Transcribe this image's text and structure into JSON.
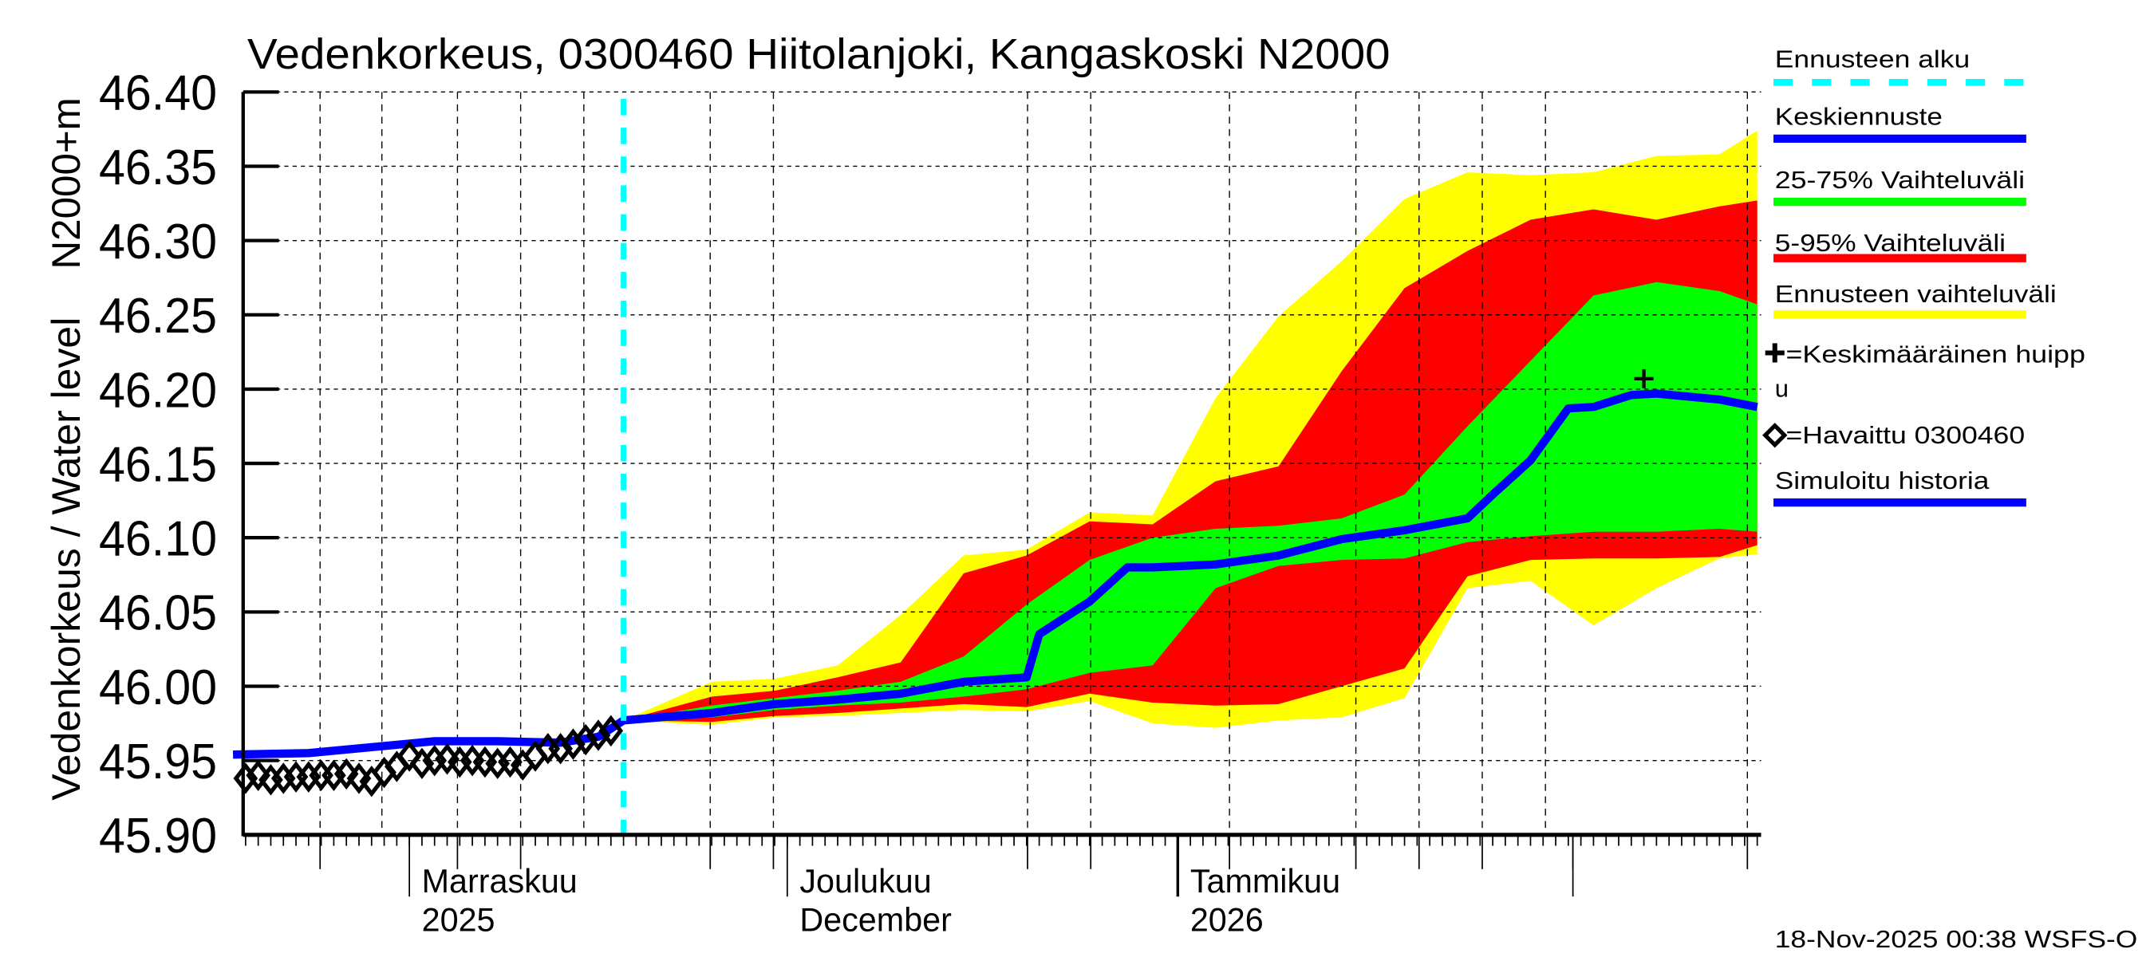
{
  "chart_data": {
    "type": "area",
    "title": "Vedenkorkeus, 0300460 Hiitolanjoki, Kangaskoski N2000",
    "ylabel": "Vedenkorkeus / Water level",
    "yunit": "N2000+m",
    "ylim": [
      45.9,
      46.4
    ],
    "yticks": [
      "45.90",
      "45.95",
      "46.00",
      "46.05",
      "46.10",
      "46.15",
      "46.20",
      "46.25",
      "46.30",
      "46.35",
      "46.40"
    ],
    "xlim": [
      "2025-10-18",
      "2026-02-16"
    ],
    "grid": true,
    "legend_position": "right",
    "x_month_labels": [
      {
        "date": "2025-11-01",
        "line1": "Marraskuu",
        "line2": "2025"
      },
      {
        "date": "2025-12-01",
        "line1": "Joulukuu",
        "line2": "December"
      },
      {
        "date": "2026-01-01",
        "line1": "Tammikuu",
        "line2": "2026"
      }
    ],
    "forecast_start": "2025-11-18",
    "forecast_dates": [
      "2025-11-18",
      "2025-11-25",
      "2025-11-30",
      "2025-12-05",
      "2025-12-10",
      "2025-12-15",
      "2025-12-20",
      "2025-12-25",
      "2025-12-30",
      "2026-01-04",
      "2026-01-09",
      "2026-01-14",
      "2026-01-19",
      "2026-01-24",
      "2026-01-29",
      "2026-02-03",
      "2026-02-08",
      "2026-02-13",
      "2026-02-16"
    ],
    "bands": {
      "range_upper": [
        45.977,
        46.003,
        46.005,
        46.014,
        46.048,
        46.088,
        46.092,
        46.117,
        46.115,
        46.194,
        46.249,
        46.286,
        46.328,
        46.346,
        46.344,
        46.346,
        46.357,
        46.358,
        46.374
      ],
      "p95": [
        45.977,
        45.993,
        45.997,
        46.006,
        46.016,
        46.076,
        46.088,
        46.111,
        46.109,
        46.138,
        46.148,
        46.212,
        46.268,
        46.293,
        46.314,
        46.321,
        46.314,
        46.323,
        46.327
      ],
      "p75": [
        45.977,
        45.987,
        45.992,
        45.997,
        46.003,
        46.02,
        46.055,
        46.085,
        46.1,
        46.106,
        46.108,
        46.113,
        46.129,
        46.175,
        46.219,
        46.263,
        46.272,
        46.266,
        46.257
      ],
      "p25": [
        45.977,
        45.979,
        45.984,
        45.987,
        45.989,
        45.993,
        45.998,
        46.009,
        46.014,
        46.066,
        46.081,
        46.085,
        46.086,
        46.097,
        46.101,
        46.104,
        46.104,
        46.106,
        46.104
      ],
      "p5": [
        45.977,
        45.976,
        45.98,
        45.982,
        45.985,
        45.988,
        45.986,
        45.995,
        45.989,
        45.987,
        45.988,
        46.0,
        46.012,
        46.074,
        46.085,
        46.086,
        46.086,
        46.087,
        46.095
      ],
      "range_lower": [
        45.977,
        45.974,
        45.979,
        45.98,
        45.982,
        45.984,
        45.983,
        45.99,
        45.975,
        45.972,
        45.977,
        45.979,
        45.992,
        46.066,
        46.071,
        46.041,
        46.066,
        46.086,
        46.089
      ]
    },
    "median_forecast": [
      [
        "2025-11-18",
        45.977
      ],
      [
        "2025-11-25",
        45.982
      ],
      [
        "2025-11-30",
        45.988
      ],
      [
        "2025-12-05",
        45.991
      ],
      [
        "2025-12-10",
        45.995
      ],
      [
        "2025-12-15",
        46.003
      ],
      [
        "2025-12-20",
        46.006
      ],
      [
        "2025-12-21",
        46.035
      ],
      [
        "2025-12-25",
        46.057
      ],
      [
        "2025-12-28",
        46.08
      ],
      [
        "2025-12-30",
        46.08
      ],
      [
        "2026-01-04",
        46.082
      ],
      [
        "2026-01-09",
        46.088
      ],
      [
        "2026-01-14",
        46.099
      ],
      [
        "2026-01-19",
        46.105
      ],
      [
        "2026-01-24",
        46.113
      ],
      [
        "2026-01-26",
        46.129
      ],
      [
        "2026-01-29",
        46.152
      ],
      [
        "2026-02-01",
        46.187
      ],
      [
        "2026-02-03",
        46.188
      ],
      [
        "2026-02-06",
        46.196
      ],
      [
        "2026-02-08",
        46.197
      ],
      [
        "2026-02-13",
        46.193
      ],
      [
        "2026-02-16",
        46.188
      ]
    ],
    "mean_peak": {
      "date": "2026-02-07",
      "value": 46.207
    },
    "simulated_history": [
      [
        "2025-10-18",
        45.954
      ],
      [
        "2025-10-24",
        45.955
      ],
      [
        "2025-10-29",
        45.959
      ],
      [
        "2025-11-03",
        45.963
      ],
      [
        "2025-11-08",
        45.963
      ],
      [
        "2025-11-13",
        45.962
      ],
      [
        "2025-11-16",
        45.966
      ],
      [
        "2025-11-18",
        45.977
      ]
    ],
    "observed_start": "2025-10-19",
    "observed": [
      45.938,
      45.94,
      45.937,
      45.938,
      45.939,
      45.939,
      45.94,
      45.94,
      45.941,
      45.938,
      45.936,
      45.942,
      45.946,
      45.953,
      45.948,
      45.95,
      45.951,
      45.949,
      45.95,
      45.949,
      45.948,
      45.949,
      45.947,
      45.953,
      45.958,
      45.958,
      45.961,
      45.964,
      45.967,
      45.97
    ],
    "colors": {
      "forecast_start": "#00ffff",
      "median": "#0000ff",
      "p25_75": "#00ff00",
      "p5_95": "#ff0000",
      "range": "#ffff00",
      "history": "#0000ff"
    }
  },
  "legend": {
    "forecast_start": "Ennusteen alku",
    "median": "Keskiennuste",
    "p25_75": "25-75% Vaihteluväli",
    "p5_95": "5-95% Vaihteluväli",
    "range": "Ennusteen vaihteluväli",
    "peak_line1": "=Keskimääräinen huipp",
    "peak_line2": "u",
    "observed": "=Havaittu 0300460",
    "history": "Simuloitu historia"
  },
  "footer": "18-Nov-2025 00:38 WSFS-O"
}
